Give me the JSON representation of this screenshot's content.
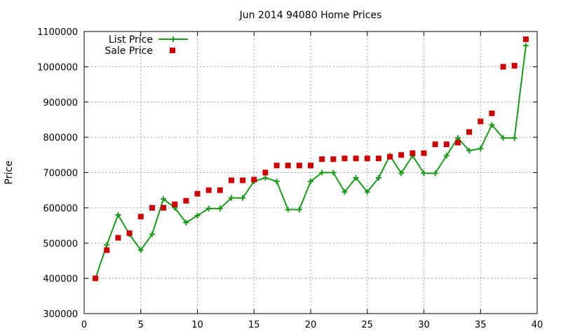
{
  "chart_data": {
    "type": "line",
    "title": "Jun 2014 94080 Home Prices",
    "xlabel": "",
    "ylabel": "Price",
    "xlim": [
      0,
      40
    ],
    "ylim": [
      300000,
      1100000
    ],
    "xticks": [
      0,
      5,
      10,
      15,
      20,
      25,
      30,
      35,
      40
    ],
    "yticks": [
      300000,
      400000,
      500000,
      600000,
      700000,
      800000,
      900000,
      1000000,
      1100000
    ],
    "grid": true,
    "legend_position": "top-left",
    "series": [
      {
        "name": "List Price",
        "style": "line-with-plus-markers",
        "color": "#1a9a1a",
        "x": [
          1,
          2,
          3,
          4,
          5,
          6,
          7,
          8,
          9,
          10,
          11,
          12,
          13,
          14,
          15,
          16,
          17,
          18,
          19,
          20,
          21,
          22,
          23,
          24,
          25,
          26,
          27,
          28,
          29,
          30,
          31,
          32,
          33,
          34,
          35,
          36,
          37,
          38,
          39
        ],
        "y": [
          400000,
          495000,
          580000,
          525000,
          480000,
          525000,
          625000,
          600000,
          558000,
          578000,
          598000,
          598000,
          628000,
          628000,
          675000,
          685000,
          675000,
          595000,
          595000,
          675000,
          700000,
          700000,
          645000,
          685000,
          645000,
          685000,
          748000,
          698000,
          748000,
          698000,
          698000,
          748000,
          798000,
          762000,
          768000,
          835000,
          798000,
          798000,
          1060000
        ]
      },
      {
        "name": "Sale Price",
        "style": "square-markers",
        "color": "#cc0000",
        "x": [
          1,
          2,
          3,
          4,
          5,
          6,
          7,
          8,
          9,
          10,
          11,
          12,
          13,
          14,
          15,
          16,
          17,
          18,
          19,
          20,
          21,
          22,
          23,
          24,
          25,
          26,
          27,
          28,
          29,
          30,
          31,
          32,
          33,
          34,
          35,
          36,
          37,
          38,
          39
        ],
        "y": [
          400000,
          480000,
          515000,
          528000,
          575000,
          600000,
          600000,
          610000,
          620000,
          640000,
          650000,
          650000,
          678000,
          678000,
          680000,
          700000,
          720000,
          720000,
          720000,
          720000,
          738000,
          738000,
          740000,
          740000,
          740000,
          740000,
          745000,
          750000,
          755000,
          755000,
          780000,
          780000,
          785000,
          815000,
          845000,
          868000,
          1000000,
          1003000,
          1078000
        ]
      }
    ]
  }
}
